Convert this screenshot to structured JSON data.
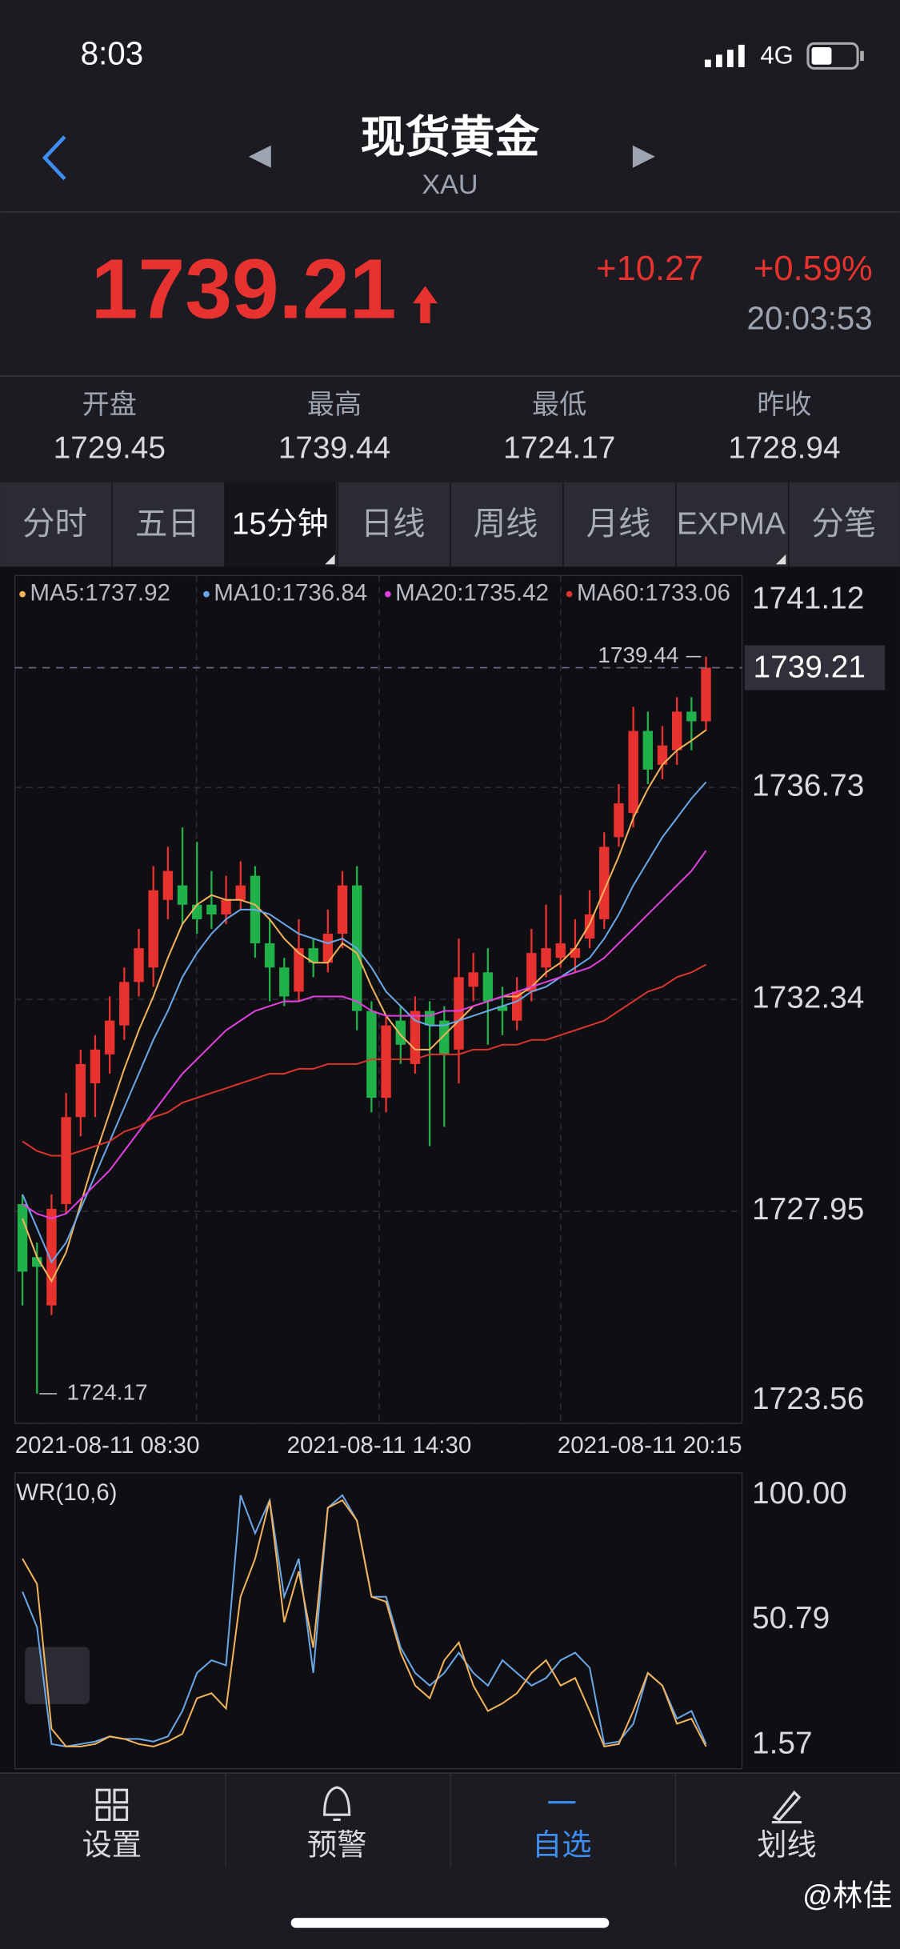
{
  "status_bar": {
    "time": "8:03",
    "network": "4G"
  },
  "header": {
    "title": "现货黄金",
    "subtitle": "XAU"
  },
  "quote": {
    "price": "1739.21",
    "change": "+10.27",
    "change_pct": "+0.59%",
    "time": "20:03:53"
  },
  "stats": [
    {
      "label": "开盘",
      "value": "1729.45"
    },
    {
      "label": "最高",
      "value": "1739.44"
    },
    {
      "label": "最低",
      "value": "1724.17"
    },
    {
      "label": "昨收",
      "value": "1728.94"
    }
  ],
  "tabs": [
    "分时",
    "五日",
    "15分钟",
    "日线",
    "周线",
    "月线",
    "EXPMA",
    "分笔"
  ],
  "active_tab": 2,
  "chart_data": {
    "type": "candlestick",
    "candles": [
      {
        "open": 1728.1,
        "high": 1728.3,
        "low": 1726.0,
        "close": 1726.7
      },
      {
        "open": 1727.0,
        "high": 1727.3,
        "low": 1724.17,
        "close": 1726.8
      },
      {
        "open": 1726.0,
        "high": 1728.3,
        "low": 1725.8,
        "close": 1728.0
      },
      {
        "open": 1728.1,
        "high": 1730.4,
        "low": 1727.9,
        "close": 1729.9
      },
      {
        "open": 1729.9,
        "high": 1731.3,
        "low": 1729.5,
        "close": 1731.0
      },
      {
        "open": 1730.6,
        "high": 1731.6,
        "low": 1729.9,
        "close": 1731.3
      },
      {
        "open": 1731.2,
        "high": 1732.4,
        "low": 1730.8,
        "close": 1731.9
      },
      {
        "open": 1731.8,
        "high": 1733.0,
        "low": 1731.5,
        "close": 1732.7
      },
      {
        "open": 1732.7,
        "high": 1733.8,
        "low": 1732.4,
        "close": 1733.4
      },
      {
        "open": 1733.0,
        "high": 1735.1,
        "low": 1732.6,
        "close": 1734.6
      },
      {
        "open": 1734.4,
        "high": 1735.5,
        "low": 1734.0,
        "close": 1735.0
      },
      {
        "open": 1734.7,
        "high": 1735.9,
        "low": 1733.9,
        "close": 1734.3
      },
      {
        "open": 1734.3,
        "high": 1735.6,
        "low": 1733.7,
        "close": 1734.0
      },
      {
        "open": 1734.3,
        "high": 1735.0,
        "low": 1733.8,
        "close": 1734.1
      },
      {
        "open": 1734.1,
        "high": 1734.9,
        "low": 1733.9,
        "close": 1734.4
      },
      {
        "open": 1734.4,
        "high": 1735.2,
        "low": 1734.2,
        "close": 1734.7
      },
      {
        "open": 1734.9,
        "high": 1735.1,
        "low": 1733.2,
        "close": 1733.5
      },
      {
        "open": 1733.5,
        "high": 1734.0,
        "low": 1732.3,
        "close": 1733.0
      },
      {
        "open": 1733.0,
        "high": 1733.2,
        "low": 1732.2,
        "close": 1732.4
      },
      {
        "open": 1732.5,
        "high": 1734.0,
        "low": 1732.3,
        "close": 1733.4
      },
      {
        "open": 1733.4,
        "high": 1733.6,
        "low": 1732.8,
        "close": 1733.1
      },
      {
        "open": 1733.1,
        "high": 1734.2,
        "low": 1732.9,
        "close": 1733.7
      },
      {
        "open": 1733.7,
        "high": 1735.0,
        "low": 1733.4,
        "close": 1734.7
      },
      {
        "open": 1734.7,
        "high": 1735.1,
        "low": 1731.7,
        "close": 1732.1
      },
      {
        "open": 1732.1,
        "high": 1732.3,
        "low": 1730.0,
        "close": 1730.3
      },
      {
        "open": 1730.3,
        "high": 1732.0,
        "low": 1730.0,
        "close": 1731.8
      },
      {
        "open": 1731.9,
        "high": 1732.2,
        "low": 1731.0,
        "close": 1731.4
      },
      {
        "open": 1731.0,
        "high": 1732.4,
        "low": 1730.8,
        "close": 1732.1
      },
      {
        "open": 1732.1,
        "high": 1732.3,
        "low": 1729.3,
        "close": 1731.8
      },
      {
        "open": 1731.9,
        "high": 1732.2,
        "low": 1729.7,
        "close": 1731.2
      },
      {
        "open": 1731.3,
        "high": 1733.6,
        "low": 1730.6,
        "close": 1732.8
      },
      {
        "open": 1732.6,
        "high": 1733.3,
        "low": 1732.3,
        "close": 1732.9
      },
      {
        "open": 1732.9,
        "high": 1733.4,
        "low": 1731.4,
        "close": 1732.3
      },
      {
        "open": 1732.2,
        "high": 1732.6,
        "low": 1731.6,
        "close": 1732.1
      },
      {
        "open": 1731.9,
        "high": 1732.8,
        "low": 1731.7,
        "close": 1732.5
      },
      {
        "open": 1732.5,
        "high": 1733.8,
        "low": 1732.3,
        "close": 1733.3
      },
      {
        "open": 1733.0,
        "high": 1734.3,
        "low": 1732.8,
        "close": 1733.4
      },
      {
        "open": 1733.2,
        "high": 1734.5,
        "low": 1733.0,
        "close": 1733.5
      },
      {
        "open": 1733.2,
        "high": 1734.0,
        "low": 1732.9,
        "close": 1733.4
      },
      {
        "open": 1733.6,
        "high": 1734.6,
        "low": 1733.4,
        "close": 1734.1
      },
      {
        "open": 1734.0,
        "high": 1735.8,
        "low": 1733.8,
        "close": 1735.5
      },
      {
        "open": 1735.7,
        "high": 1736.8,
        "low": 1735.5,
        "close": 1736.4
      },
      {
        "open": 1736.2,
        "high": 1738.4,
        "low": 1735.9,
        "close": 1737.9
      },
      {
        "open": 1737.9,
        "high": 1738.3,
        "low": 1736.8,
        "close": 1737.1
      },
      {
        "open": 1737.2,
        "high": 1738.0,
        "low": 1736.9,
        "close": 1737.6
      },
      {
        "open": 1737.5,
        "high": 1738.6,
        "low": 1737.2,
        "close": 1738.3
      },
      {
        "open": 1738.3,
        "high": 1738.6,
        "low": 1737.5,
        "close": 1738.1
      },
      {
        "open": 1738.1,
        "high": 1739.44,
        "low": 1737.9,
        "close": 1739.21
      }
    ],
    "up_color": "#e8322f",
    "down_color": "#21b14a",
    "ma_series": [
      {
        "label": "MA5:1737.92",
        "color": "#f2b35c",
        "values": [
          1727.8,
          1727.0,
          1726.5,
          1727.1,
          1728.1,
          1729.1,
          1730.0,
          1730.9,
          1731.7,
          1732.4,
          1733.2,
          1733.9,
          1734.3,
          1734.5,
          1734.4,
          1734.4,
          1734.3,
          1734.0,
          1733.6,
          1733.3,
          1733.1,
          1733.1,
          1733.5,
          1733.3,
          1732.6,
          1732.0,
          1731.6,
          1731.3,
          1731.3,
          1731.6,
          1731.9,
          1732.2,
          1732.3,
          1732.4,
          1732.4,
          1732.6,
          1732.9,
          1733.1,
          1733.4,
          1733.9,
          1734.6,
          1735.3,
          1736.1,
          1736.7,
          1737.2,
          1737.5,
          1737.7,
          1737.92
        ]
      },
      {
        "label": "MA10:1736.84",
        "color": "#6aa7e8",
        "values": [
          1728.3,
          1727.6,
          1726.9,
          1727.3,
          1728.0,
          1728.7,
          1729.4,
          1730.1,
          1730.8,
          1731.5,
          1732.1,
          1732.8,
          1733.3,
          1733.7,
          1734.0,
          1734.2,
          1734.2,
          1734.1,
          1733.9,
          1733.7,
          1733.6,
          1733.5,
          1733.6,
          1733.4,
          1733.0,
          1732.5,
          1732.2,
          1731.9,
          1731.8,
          1731.8,
          1731.9,
          1732.0,
          1732.1,
          1732.2,
          1732.3,
          1732.5,
          1732.6,
          1732.8,
          1733.0,
          1733.2,
          1733.6,
          1734.1,
          1734.7,
          1735.2,
          1735.7,
          1736.1,
          1736.5,
          1736.84
        ]
      },
      {
        "label": "MA20:1735.42",
        "color": "#e040e0",
        "values": [
          1728.1,
          1727.9,
          1727.8,
          1727.9,
          1728.2,
          1728.5,
          1728.8,
          1729.2,
          1729.6,
          1730.0,
          1730.4,
          1730.8,
          1731.1,
          1731.4,
          1731.7,
          1731.9,
          1732.1,
          1732.2,
          1732.3,
          1732.3,
          1732.4,
          1732.4,
          1732.4,
          1732.3,
          1732.1,
          1732.0,
          1732.0,
          1732.0,
          1732.0,
          1732.1,
          1732.1,
          1732.2,
          1732.3,
          1732.4,
          1732.5,
          1732.6,
          1732.7,
          1732.8,
          1732.9,
          1733.0,
          1733.2,
          1733.5,
          1733.8,
          1734.1,
          1734.4,
          1734.7,
          1735.0,
          1735.42
        ]
      },
      {
        "label": "MA60:1733.06",
        "color": "#d9352e",
        "values": [
          1729.4,
          1729.2,
          1729.1,
          1729.1,
          1729.2,
          1729.3,
          1729.4,
          1729.6,
          1729.7,
          1729.9,
          1730.0,
          1730.2,
          1730.3,
          1730.4,
          1730.5,
          1730.6,
          1730.7,
          1730.8,
          1730.8,
          1730.9,
          1730.9,
          1731.0,
          1731.0,
          1731.0,
          1731.1,
          1731.1,
          1731.1,
          1731.1,
          1731.2,
          1731.2,
          1731.2,
          1731.3,
          1731.3,
          1731.4,
          1731.4,
          1731.5,
          1731.5,
          1731.6,
          1731.7,
          1731.8,
          1731.9,
          1732.1,
          1732.3,
          1732.5,
          1732.6,
          1732.8,
          1732.9,
          1733.06
        ]
      }
    ],
    "ylim": [
      1723.56,
      1741.12
    ],
    "yticks": [
      1741.12,
      1736.73,
      1732.34,
      1727.95,
      1723.56
    ],
    "grid": true,
    "x_labels": [
      "2021-08-11 08:30",
      "2021-08-11 14:30",
      "2021-08-11 20:15"
    ],
    "annotations": {
      "high": "1739.44",
      "low": "1724.17",
      "last": "1739.21"
    }
  },
  "indicator": {
    "type": "line",
    "title": "WR(10,6)",
    "ylim": [
      -7.74,
      108.77
    ],
    "yticks": [
      {
        "value": 100,
        "label": "100.00"
      },
      50.79,
      1.57
    ],
    "series": [
      {
        "color": "#6aa7e8",
        "values": [
          62,
          48,
          2,
          1,
          2,
          3,
          5,
          4,
          4,
          3,
          5,
          15,
          30,
          35,
          33,
          100,
          85,
          98,
          60,
          75,
          30,
          95,
          100,
          90,
          60,
          60,
          40,
          30,
          25,
          30,
          38,
          30,
          25,
          35,
          30,
          25,
          28,
          35,
          38,
          32,
          2,
          3,
          10,
          30,
          25,
          12,
          15,
          2
        ]
      },
      {
        "color": "#f2b35c",
        "values": [
          75,
          65,
          8,
          1,
          1,
          2,
          5,
          4,
          2,
          1,
          3,
          6,
          20,
          22,
          16,
          60,
          75,
          98,
          50,
          70,
          40,
          95,
          98,
          90,
          60,
          58,
          38,
          25,
          20,
          35,
          42,
          25,
          15,
          18,
          22,
          30,
          35,
          25,
          28,
          15,
          1,
          2,
          15,
          30,
          25,
          10,
          12,
          1
        ]
      }
    ]
  },
  "nav": [
    "设置",
    "预警",
    "自选",
    "划线"
  ],
  "active_nav": 2,
  "watermark": "@林佳"
}
